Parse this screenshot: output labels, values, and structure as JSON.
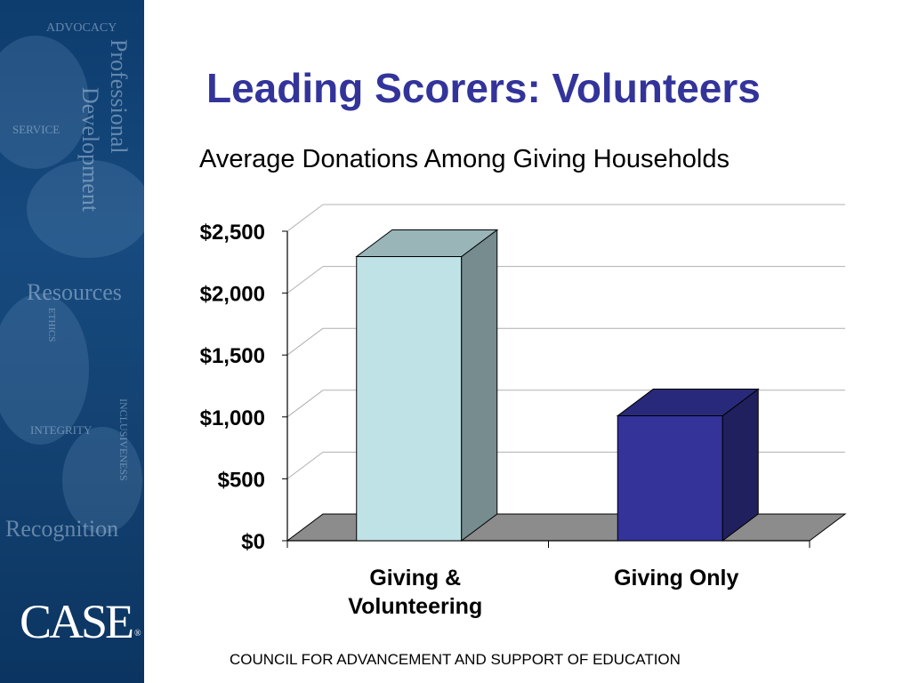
{
  "slide": {
    "title": "Leading Scorers: Volunteers",
    "footer": "COUNCIL FOR ADVANCEMENT AND SUPPORT OF EDUCATION"
  },
  "sidebar": {
    "words": [
      "ADVOCACY",
      "Professional",
      "Development",
      "SERVICE",
      "Resources",
      "ETHICS",
      "INTEGRITY",
      "INCLUSIVENESS",
      "Recognition"
    ],
    "logo": "CASE",
    "logo_mark": "®"
  },
  "colors": {
    "title": "#33349a",
    "sidebar": "#12406f",
    "bar_giving_volunteering": "#bfe2e6",
    "bar_giving_only": "#33339a",
    "floor": "#8c8c8c"
  },
  "chart_data": {
    "type": "bar",
    "title": "Average Donations Among Giving Households",
    "categories": [
      "Giving & Volunteering",
      "Giving Only"
    ],
    "category_lines": [
      [
        "Giving &",
        "Volunteering"
      ],
      [
        "Giving Only"
      ]
    ],
    "values": [
      2295,
      1009
    ],
    "ylim": [
      0,
      2500
    ],
    "yticks": [
      "$0",
      "$500",
      "$1,000",
      "$1,500",
      "$2,000",
      "$2,500"
    ],
    "grid": true,
    "style": "3d"
  }
}
